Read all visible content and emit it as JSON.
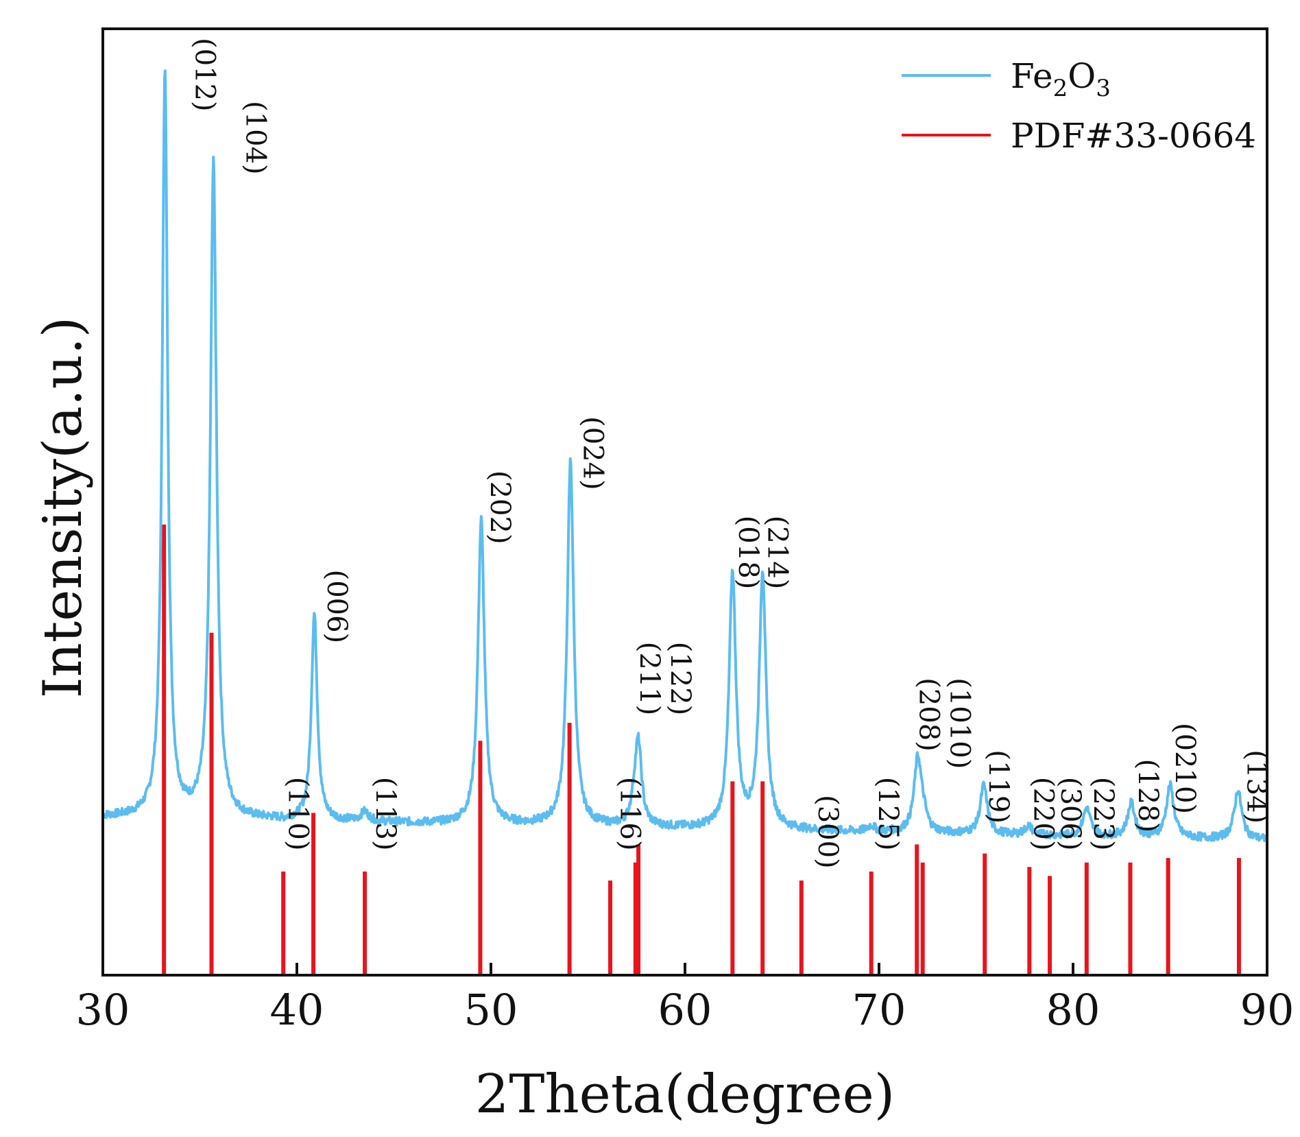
{
  "chart_data": {
    "type": "line",
    "xlabel": "2Theta(degree)",
    "ylabel": "Intensity(a.u.)",
    "xlim": [
      30,
      90
    ],
    "ylim": [
      0,
      105
    ],
    "x_ticks": [
      "30",
      "40",
      "50",
      "60",
      "70",
      "80",
      "90"
    ],
    "y_ticks_labeled": false,
    "grid": false,
    "legend": {
      "placement": "top-right",
      "entries": [
        {
          "label_main": "Fe",
          "sub1": "2",
          "label_mid": "O",
          "sub2": "3",
          "color": "#5bbcf0"
        },
        {
          "label": "PDF#33-0664",
          "color": "#e8141c"
        }
      ]
    },
    "series": [
      {
        "name": "Fe2O3",
        "kind": "line",
        "color": "#5bbcf0",
        "baseline_start": 17.5,
        "baseline_end": 15.0,
        "peaks": [
          {
            "pos": 33.2,
            "height": 100.0,
            "width": 0.17
          },
          {
            "pos": 35.7,
            "height": 90.0,
            "width": 0.19
          },
          {
            "pos": 39.3,
            "height": 17.0,
            "width": 0.18
          },
          {
            "pos": 40.9,
            "height": 40.0,
            "width": 0.18
          },
          {
            "pos": 43.5,
            "height": 18.0,
            "width": 0.25
          },
          {
            "pos": 49.5,
            "height": 50.5,
            "width": 0.2
          },
          {
            "pos": 54.1,
            "height": 57.0,
            "width": 0.2
          },
          {
            "pos": 57.4,
            "height": 18.5,
            "width": 0.22
          },
          {
            "pos": 57.6,
            "height": 25.0,
            "width": 0.2
          },
          {
            "pos": 62.45,
            "height": 44.5,
            "width": 0.21
          },
          {
            "pos": 64.0,
            "height": 44.5,
            "width": 0.21
          },
          {
            "pos": 69.6,
            "height": 16.5,
            "width": 0.22
          },
          {
            "pos": 72.0,
            "height": 24.0,
            "width": 0.23
          },
          {
            "pos": 72.3,
            "height": 17.0,
            "width": 0.2
          },
          {
            "pos": 75.4,
            "height": 21.0,
            "width": 0.22
          },
          {
            "pos": 77.7,
            "height": 16.5,
            "width": 0.22
          },
          {
            "pos": 78.8,
            "height": 15.5,
            "width": 0.2
          },
          {
            "pos": 80.7,
            "height": 18.5,
            "width": 0.23
          },
          {
            "pos": 83.0,
            "height": 19.0,
            "width": 0.23
          },
          {
            "pos": 85.0,
            "height": 21.0,
            "width": 0.23
          },
          {
            "pos": 88.5,
            "height": 20.5,
            "width": 0.23
          }
        ]
      },
      {
        "name": "PDF#33-0664",
        "kind": "stick",
        "color": "#e8141c",
        "x": [
          33.15,
          35.6,
          39.3,
          40.85,
          43.5,
          49.45,
          54.05,
          56.15,
          57.45,
          57.6,
          62.45,
          64.0,
          66.0,
          69.6,
          71.95,
          72.25,
          75.45,
          77.75,
          78.8,
          80.7,
          82.95,
          84.9,
          88.55
        ],
        "y": [
          50,
          38,
          11.5,
          18,
          11.5,
          26,
          28,
          10.5,
          12.5,
          14.5,
          21.5,
          21.5,
          10.5,
          11.5,
          14.5,
          12.5,
          13.5,
          12,
          11,
          12.5,
          12.5,
          13,
          13
        ]
      }
    ],
    "annotations": [
      {
        "text": "(012)",
        "x": 34.3,
        "y": 104
      },
      {
        "text": "(104)",
        "x": 36.9,
        "y": 97
      },
      {
        "text": "(110)",
        "x": 39.1,
        "y": 22
      },
      {
        "text": "(006)",
        "x": 41.1,
        "y": 45
      },
      {
        "text": "(113)",
        "x": 43.6,
        "y": 22
      },
      {
        "text": "(202)",
        "x": 49.5,
        "y": 56
      },
      {
        "text": "(024)",
        "x": 54.3,
        "y": 62
      },
      {
        "text": "(116)",
        "x": 56.2,
        "y": 22
      },
      {
        "text": "(211)",
        "x": 57.2,
        "y": 37
      },
      {
        "text": "(122)",
        "x": 58.8,
        "y": 37
      },
      {
        "text": "(018)",
        "x": 62.3,
        "y": 51
      },
      {
        "text": "(214)",
        "x": 63.8,
        "y": 51
      },
      {
        "text": "(300)",
        "x": 66.4,
        "y": 20
      },
      {
        "text": "(125)",
        "x": 69.5,
        "y": 22
      },
      {
        "text": "(208)",
        "x": 71.6,
        "y": 33
      },
      {
        "text": "(1010)",
        "x": 73.2,
        "y": 33
      },
      {
        "text": "(119)",
        "x": 75.2,
        "y": 25
      },
      {
        "text": "(220)",
        "x": 77.5,
        "y": 22
      },
      {
        "text": "(306)",
        "x": 78.9,
        "y": 22
      },
      {
        "text": "(223)",
        "x": 80.6,
        "y": 22
      },
      {
        "text": "(128)",
        "x": 82.9,
        "y": 24
      },
      {
        "text": "(0210)",
        "x": 84.8,
        "y": 28
      },
      {
        "text": "(134)",
        "x": 88.5,
        "y": 25
      }
    ]
  }
}
